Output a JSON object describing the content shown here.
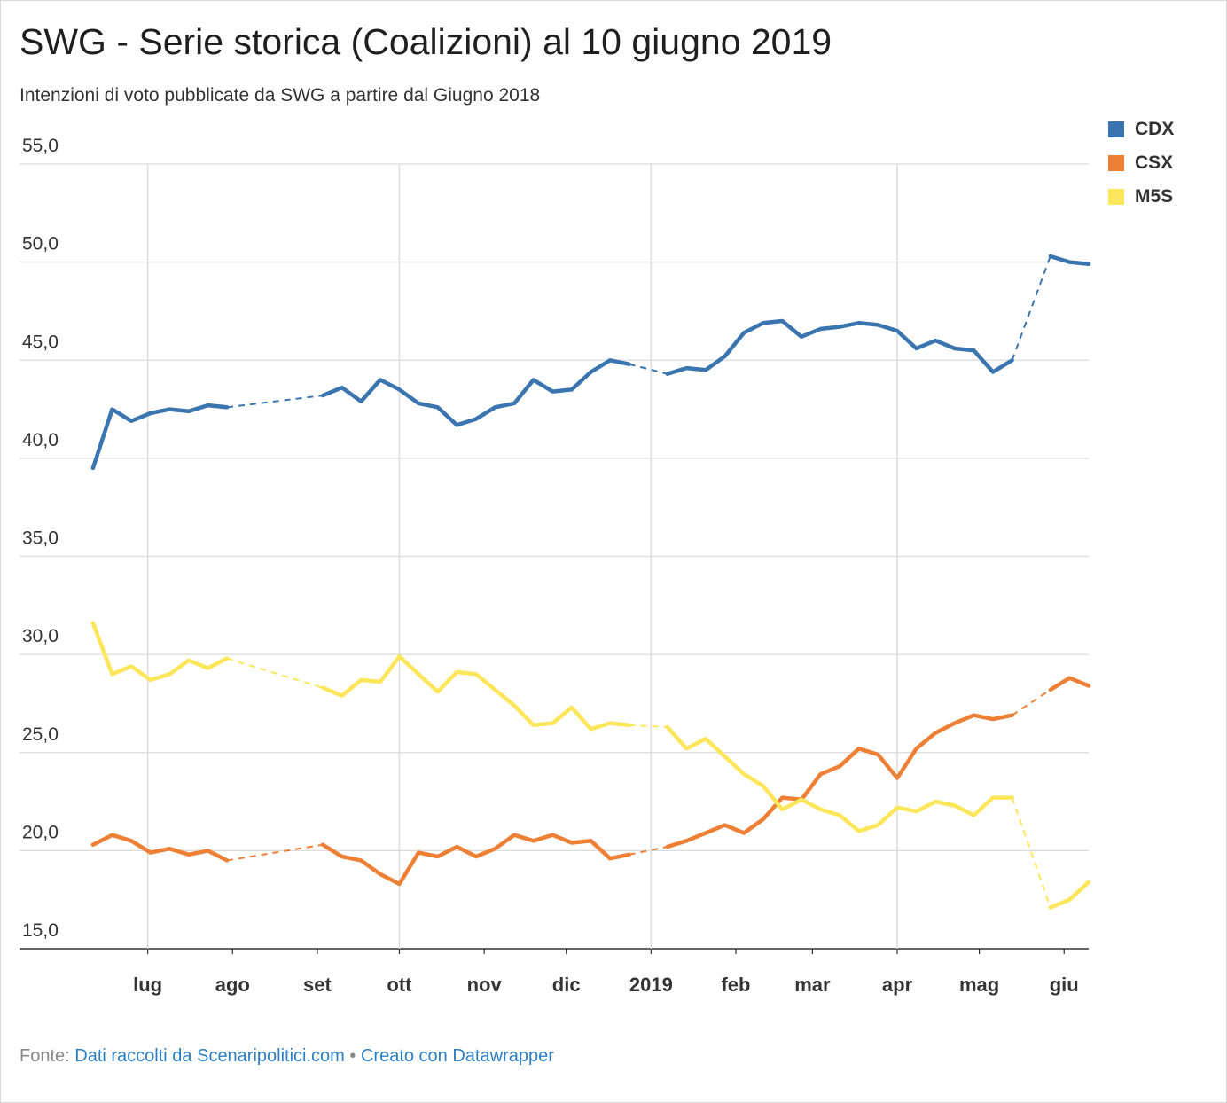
{
  "header": {
    "title": "SWG - Serie storica (Coalizioni) al 10 giugno 2019",
    "subtitle": "Intenzioni di voto pubblicate da SWG a partire dal Giugno 2018"
  },
  "footer": {
    "source_prefix": "Fonte:",
    "source_link": "Dati raccolti da Scenaripolitici.com",
    "separator": "•",
    "credit_link": "Creato con Datawrapper"
  },
  "legend": [
    {
      "label": "CDX",
      "color": "#3a75b0"
    },
    {
      "label": "CSX",
      "color": "#ed8035"
    },
    {
      "label": "M5S",
      "color": "#fde65a"
    }
  ],
  "chart_data": {
    "type": "line",
    "title": "SWG - Serie storica (Coalizioni) al 10 giugno 2019",
    "subtitle": "Intenzioni di voto pubblicate da SWG a partire dal Giugno 2018",
    "xlabel": "",
    "ylabel": "",
    "ylim": [
      15,
      55
    ],
    "yticks": [
      "15,0",
      "20,0",
      "25,0",
      "30,0",
      "35,0",
      "40,0",
      "45,0",
      "50,0",
      "55,0"
    ],
    "xticks": [
      {
        "label": "lug",
        "date": "2018-07-01"
      },
      {
        "label": "ago",
        "date": "2018-08-01"
      },
      {
        "label": "set",
        "date": "2018-09-01"
      },
      {
        "label": "ott",
        "date": "2018-10-01"
      },
      {
        "label": "nov",
        "date": "2018-11-01"
      },
      {
        "label": "dic",
        "date": "2018-12-01"
      },
      {
        "label": "2019",
        "date": "2019-01-01"
      },
      {
        "label": "feb",
        "date": "2019-02-01"
      },
      {
        "label": "mar",
        "date": "2019-03-01"
      },
      {
        "label": "apr",
        "date": "2019-04-01"
      },
      {
        "label": "mag",
        "date": "2019-05-01"
      },
      {
        "label": "giu",
        "date": "2019-06-01"
      }
    ],
    "xlim": [
      "2018-06-12",
      "2019-06-10"
    ],
    "gridlines": [
      "2018-07-01",
      "2018-10-01",
      "2019-01-01",
      "2019-04-01"
    ],
    "grid": true,
    "legend_position": "top-right",
    "missing_data_style": "dashed",
    "dates": [
      "2018-06-11",
      "2018-06-18",
      "2018-06-25",
      "2018-07-02",
      "2018-07-09",
      "2018-07-16",
      "2018-07-23",
      "2018-07-30",
      "2018-09-03",
      "2018-09-10",
      "2018-09-17",
      "2018-09-24",
      "2018-10-01",
      "2018-10-08",
      "2018-10-15",
      "2018-10-22",
      "2018-10-29",
      "2018-11-05",
      "2018-11-12",
      "2018-11-19",
      "2018-11-26",
      "2018-12-03",
      "2018-12-10",
      "2018-12-17",
      "2018-12-24",
      "2019-01-07",
      "2019-01-14",
      "2019-01-21",
      "2019-01-28",
      "2019-02-04",
      "2019-02-11",
      "2019-02-18",
      "2019-02-25",
      "2019-03-04",
      "2019-03-11",
      "2019-03-18",
      "2019-03-25",
      "2019-04-01",
      "2019-04-08",
      "2019-04-15",
      "2019-04-22",
      "2019-04-29",
      "2019-05-06",
      "2019-05-13",
      "2019-05-27",
      "2019-06-03",
      "2019-06-10"
    ],
    "series": [
      {
        "name": "CDX",
        "color": "#3a75b0",
        "values": [
          39.5,
          42.5,
          41.9,
          42.3,
          42.5,
          42.4,
          42.7,
          42.6,
          43.2,
          43.6,
          42.9,
          44.0,
          43.5,
          42.8,
          42.6,
          41.7,
          42.0,
          42.6,
          42.8,
          44.0,
          43.4,
          43.5,
          44.4,
          45.0,
          44.8,
          44.3,
          44.6,
          44.5,
          45.2,
          46.4,
          46.9,
          47.0,
          46.2,
          46.6,
          46.7,
          46.9,
          46.8,
          46.5,
          45.6,
          46.0,
          45.6,
          45.5,
          44.4,
          45.0,
          50.3,
          50.0,
          49.9
        ]
      },
      {
        "name": "CSX",
        "color": "#ed8035",
        "values": [
          20.3,
          20.8,
          20.5,
          19.9,
          20.1,
          19.8,
          20.0,
          19.5,
          20.3,
          19.7,
          19.5,
          18.8,
          18.3,
          19.9,
          19.7,
          20.2,
          19.7,
          20.1,
          20.8,
          20.5,
          20.8,
          20.4,
          20.5,
          19.6,
          19.8,
          20.2,
          20.5,
          20.9,
          21.3,
          20.9,
          21.6,
          22.7,
          22.6,
          23.9,
          24.3,
          25.2,
          24.9,
          23.7,
          25.2,
          26.0,
          26.5,
          26.9,
          26.7,
          26.9,
          28.2,
          28.8,
          28.4
        ]
      },
      {
        "name": "M5S",
        "color": "#fde65a",
        "values": [
          31.6,
          29.0,
          29.4,
          28.7,
          29.0,
          29.7,
          29.3,
          29.8,
          28.3,
          27.9,
          28.7,
          28.6,
          29.9,
          29.0,
          28.1,
          29.1,
          29.0,
          28.2,
          27.4,
          26.4,
          26.5,
          27.3,
          26.2,
          26.5,
          26.4,
          26.3,
          25.2,
          25.7,
          24.8,
          23.9,
          23.3,
          22.1,
          22.6,
          22.1,
          21.8,
          21.0,
          21.3,
          22.2,
          22.0,
          22.5,
          22.3,
          21.8,
          22.7,
          22.7,
          17.1,
          17.5,
          18.4
        ]
      }
    ]
  }
}
